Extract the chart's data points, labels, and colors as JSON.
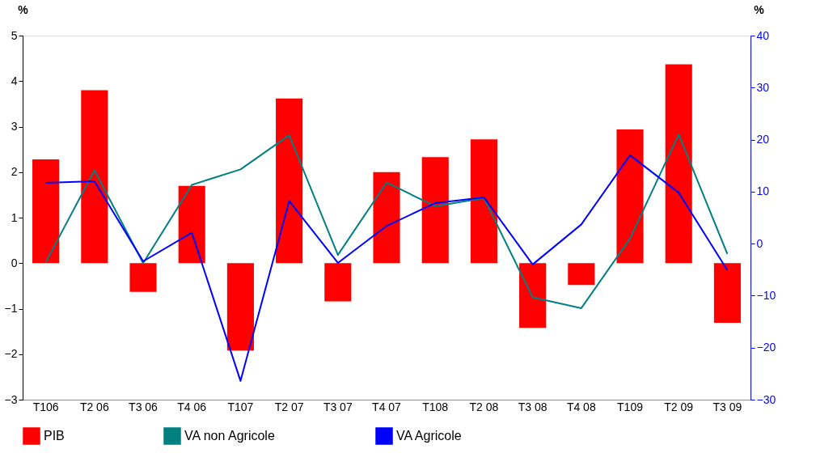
{
  "chart_data": {
    "type": "bar",
    "ylabel": "%",
    "y2label": "%",
    "categories": [
      "T106",
      "T2 06",
      "T3 06",
      "T4 06",
      "T107",
      "T2 07",
      "T3 07",
      "T4 07",
      "T108",
      "T2 08",
      "T3 08",
      "T4 08",
      "T109",
      "T2 09",
      "T3 09"
    ],
    "series": [
      {
        "name": "PIB",
        "color": "#ff0000",
        "values": [
          2.28,
          3.8,
          -0.63,
          1.7,
          -1.92,
          3.62,
          -0.84,
          2.0,
          2.33,
          2.72,
          -1.42,
          -0.48,
          2.94,
          4.37,
          -1.31
        ]
      },
      {
        "name": "VA non Agricole",
        "type": "line",
        "color": "#008080",
        "values": [
          0.02,
          2.04,
          0.0,
          1.72,
          2.06,
          2.81,
          0.18,
          1.77,
          1.25,
          1.43,
          -0.75,
          -0.99,
          0.54,
          2.83,
          0.2
        ]
      },
      {
        "name": "VA Agricole",
        "type": "line",
        "axis": "y2",
        "color": "#0000ff",
        "values": [
          11.7,
          12.0,
          -3.4,
          2.1,
          -26.4,
          8.2,
          -3.7,
          3.4,
          7.8,
          8.9,
          -4.0,
          3.7,
          17.0,
          9.8,
          -5.1
        ]
      }
    ],
    "ylim": [
      -3,
      5
    ],
    "yticks": [
      -3,
      -2,
      -1,
      0,
      1,
      2,
      3,
      4,
      5
    ],
    "y2lim": [
      -30,
      40
    ],
    "y2ticks": [
      -30,
      -20,
      -10,
      0,
      10,
      20,
      30,
      40
    ],
    "grid": false,
    "legend": "bottom"
  }
}
